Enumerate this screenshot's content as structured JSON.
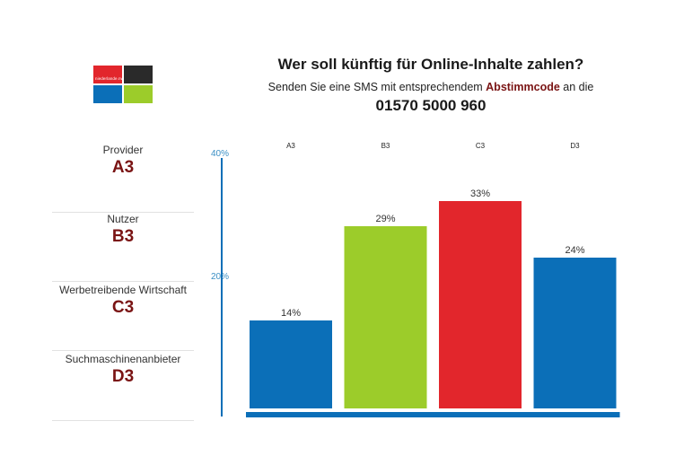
{
  "header": {
    "title": "Wer soll künftig für Online-Inhalte zahlen?",
    "subtitle_pre": "Senden Sie eine SMS mit entsprechendem ",
    "subtitle_highlight": "Abstimmcode",
    "subtitle_post": " an die",
    "phone": "01570 5000 960"
  },
  "logo": {
    "text": "niederlande.nw",
    "colors": [
      "#e2262c",
      "#2a2a2a",
      "#0b6fb8",
      "#9ccc2a"
    ]
  },
  "legend": [
    {
      "name": "Provider",
      "code": "A3"
    },
    {
      "name": "Nutzer",
      "code": "B3"
    },
    {
      "name": "Werbetreibende Wirtschaft",
      "code": "C3"
    },
    {
      "name": "Suchmaschinenanbieter",
      "code": "D3"
    }
  ],
  "chart_data": {
    "type": "bar",
    "categories": [
      "A3",
      "B3",
      "C3",
      "D3"
    ],
    "values": [
      14,
      29,
      33,
      24
    ],
    "value_labels": [
      "14%",
      "29%",
      "33%",
      "24%"
    ],
    "colors": [
      "#0b6fb8",
      "#9ccc2a",
      "#e2262c",
      "#0b6fb8"
    ],
    "ylim": [
      0,
      40
    ],
    "yticks": [
      "40%",
      "20%"
    ],
    "grid": false
  }
}
